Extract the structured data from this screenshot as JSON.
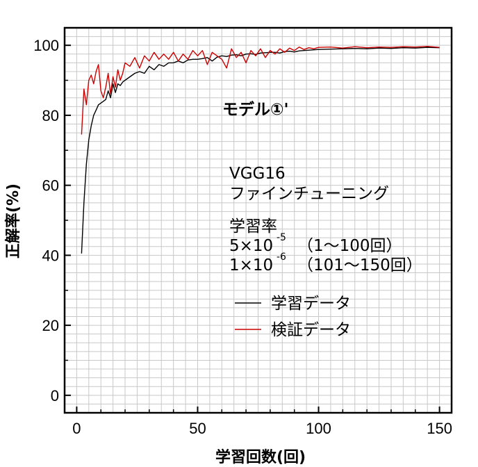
{
  "chart_data": {
    "type": "line",
    "title": "モデル①'",
    "xlabel": "学習回数(回)",
    "ylabel": "正解率(%)",
    "xlim": [
      -5,
      155
    ],
    "ylim": [
      -5,
      105
    ],
    "xticks": [
      "0",
      "50",
      "100",
      "150"
    ],
    "yticks": [
      "0",
      "20",
      "40",
      "60",
      "80",
      "100"
    ],
    "grid": true,
    "legend_placement": "center-right",
    "annotations": {
      "model": "VGG16",
      "method": "ファインチューニング",
      "lr_label": "学習率",
      "lr1_mantissa": "5×10",
      "lr1_exp": "-5",
      "lr1_range": "（1〜100回）",
      "lr2_mantissa": "1×10",
      "lr2_exp": "-6",
      "lr2_range": "（101〜150回）"
    },
    "series": [
      {
        "name": "学習データ",
        "color": "#000000",
        "x": [
          2,
          3,
          4,
          5,
          6,
          7,
          8,
          9,
          10,
          11,
          12,
          13,
          14,
          15,
          16,
          17,
          18,
          19,
          20,
          22,
          24,
          26,
          28,
          30,
          32,
          34,
          36,
          38,
          40,
          42,
          44,
          46,
          48,
          50,
          52,
          54,
          56,
          58,
          60,
          62,
          64,
          66,
          68,
          70,
          72,
          74,
          76,
          78,
          80,
          82,
          84,
          86,
          88,
          90,
          92,
          94,
          96,
          98,
          100,
          105,
          110,
          115,
          120,
          125,
          130,
          135,
          140,
          145,
          150
        ],
        "values": [
          40.5,
          55,
          66,
          73,
          77,
          80,
          81.5,
          83,
          83.5,
          84,
          84.5,
          87,
          85,
          89,
          86.5,
          89,
          88.5,
          89.5,
          90,
          91,
          92,
          92.5,
          92,
          94,
          93,
          94.5,
          94,
          95,
          95,
          95.5,
          95,
          95.8,
          96,
          96,
          96.2,
          96.5,
          95.5,
          96.6,
          97,
          96.8,
          97.2,
          97.3,
          97,
          97.5,
          97.6,
          97.4,
          97.8,
          97.9,
          98,
          98,
          97.8,
          98.2,
          98.3,
          98.1,
          98.4,
          98.5,
          98.6,
          98.7,
          98.8,
          98.9,
          99,
          99.1,
          99,
          99.2,
          99.1,
          99.3,
          99.2,
          99.4,
          99.3
        ]
      },
      {
        "name": "検証データ",
        "color": "#cc0000",
        "x": [
          2,
          3,
          4,
          5,
          6,
          7,
          8,
          9,
          10,
          11,
          12,
          13,
          14,
          15,
          16,
          17,
          18,
          19,
          20,
          22,
          24,
          26,
          28,
          30,
          32,
          34,
          36,
          38,
          40,
          42,
          44,
          46,
          48,
          50,
          52,
          54,
          56,
          58,
          60,
          62,
          64,
          66,
          68,
          70,
          72,
          74,
          76,
          78,
          80,
          82,
          84,
          86,
          88,
          90,
          92,
          94,
          96,
          98,
          100,
          105,
          110,
          115,
          120,
          125,
          130,
          135,
          140,
          145,
          150
        ],
        "values": [
          74.5,
          87.5,
          83,
          90,
          91.5,
          89,
          92.5,
          94.5,
          87,
          85,
          88,
          92,
          86,
          91,
          88,
          93,
          90,
          92,
          95,
          94,
          96.5,
          93.5,
          97,
          95.5,
          98,
          96,
          97.5,
          96,
          98,
          95.5,
          97.5,
          96,
          98.5,
          97,
          98.5,
          94.5,
          98,
          97,
          96,
          93.5,
          99,
          96.5,
          98,
          95,
          98.5,
          97,
          99,
          96.5,
          98.5,
          97.5,
          99,
          98,
          99.2,
          98.5,
          99.5,
          98.8,
          99.3,
          99,
          99.4,
          99.5,
          99.2,
          99.6,
          99.3,
          99.5,
          99.4,
          99.6,
          99.5,
          99.7,
          99.4
        ]
      }
    ]
  }
}
